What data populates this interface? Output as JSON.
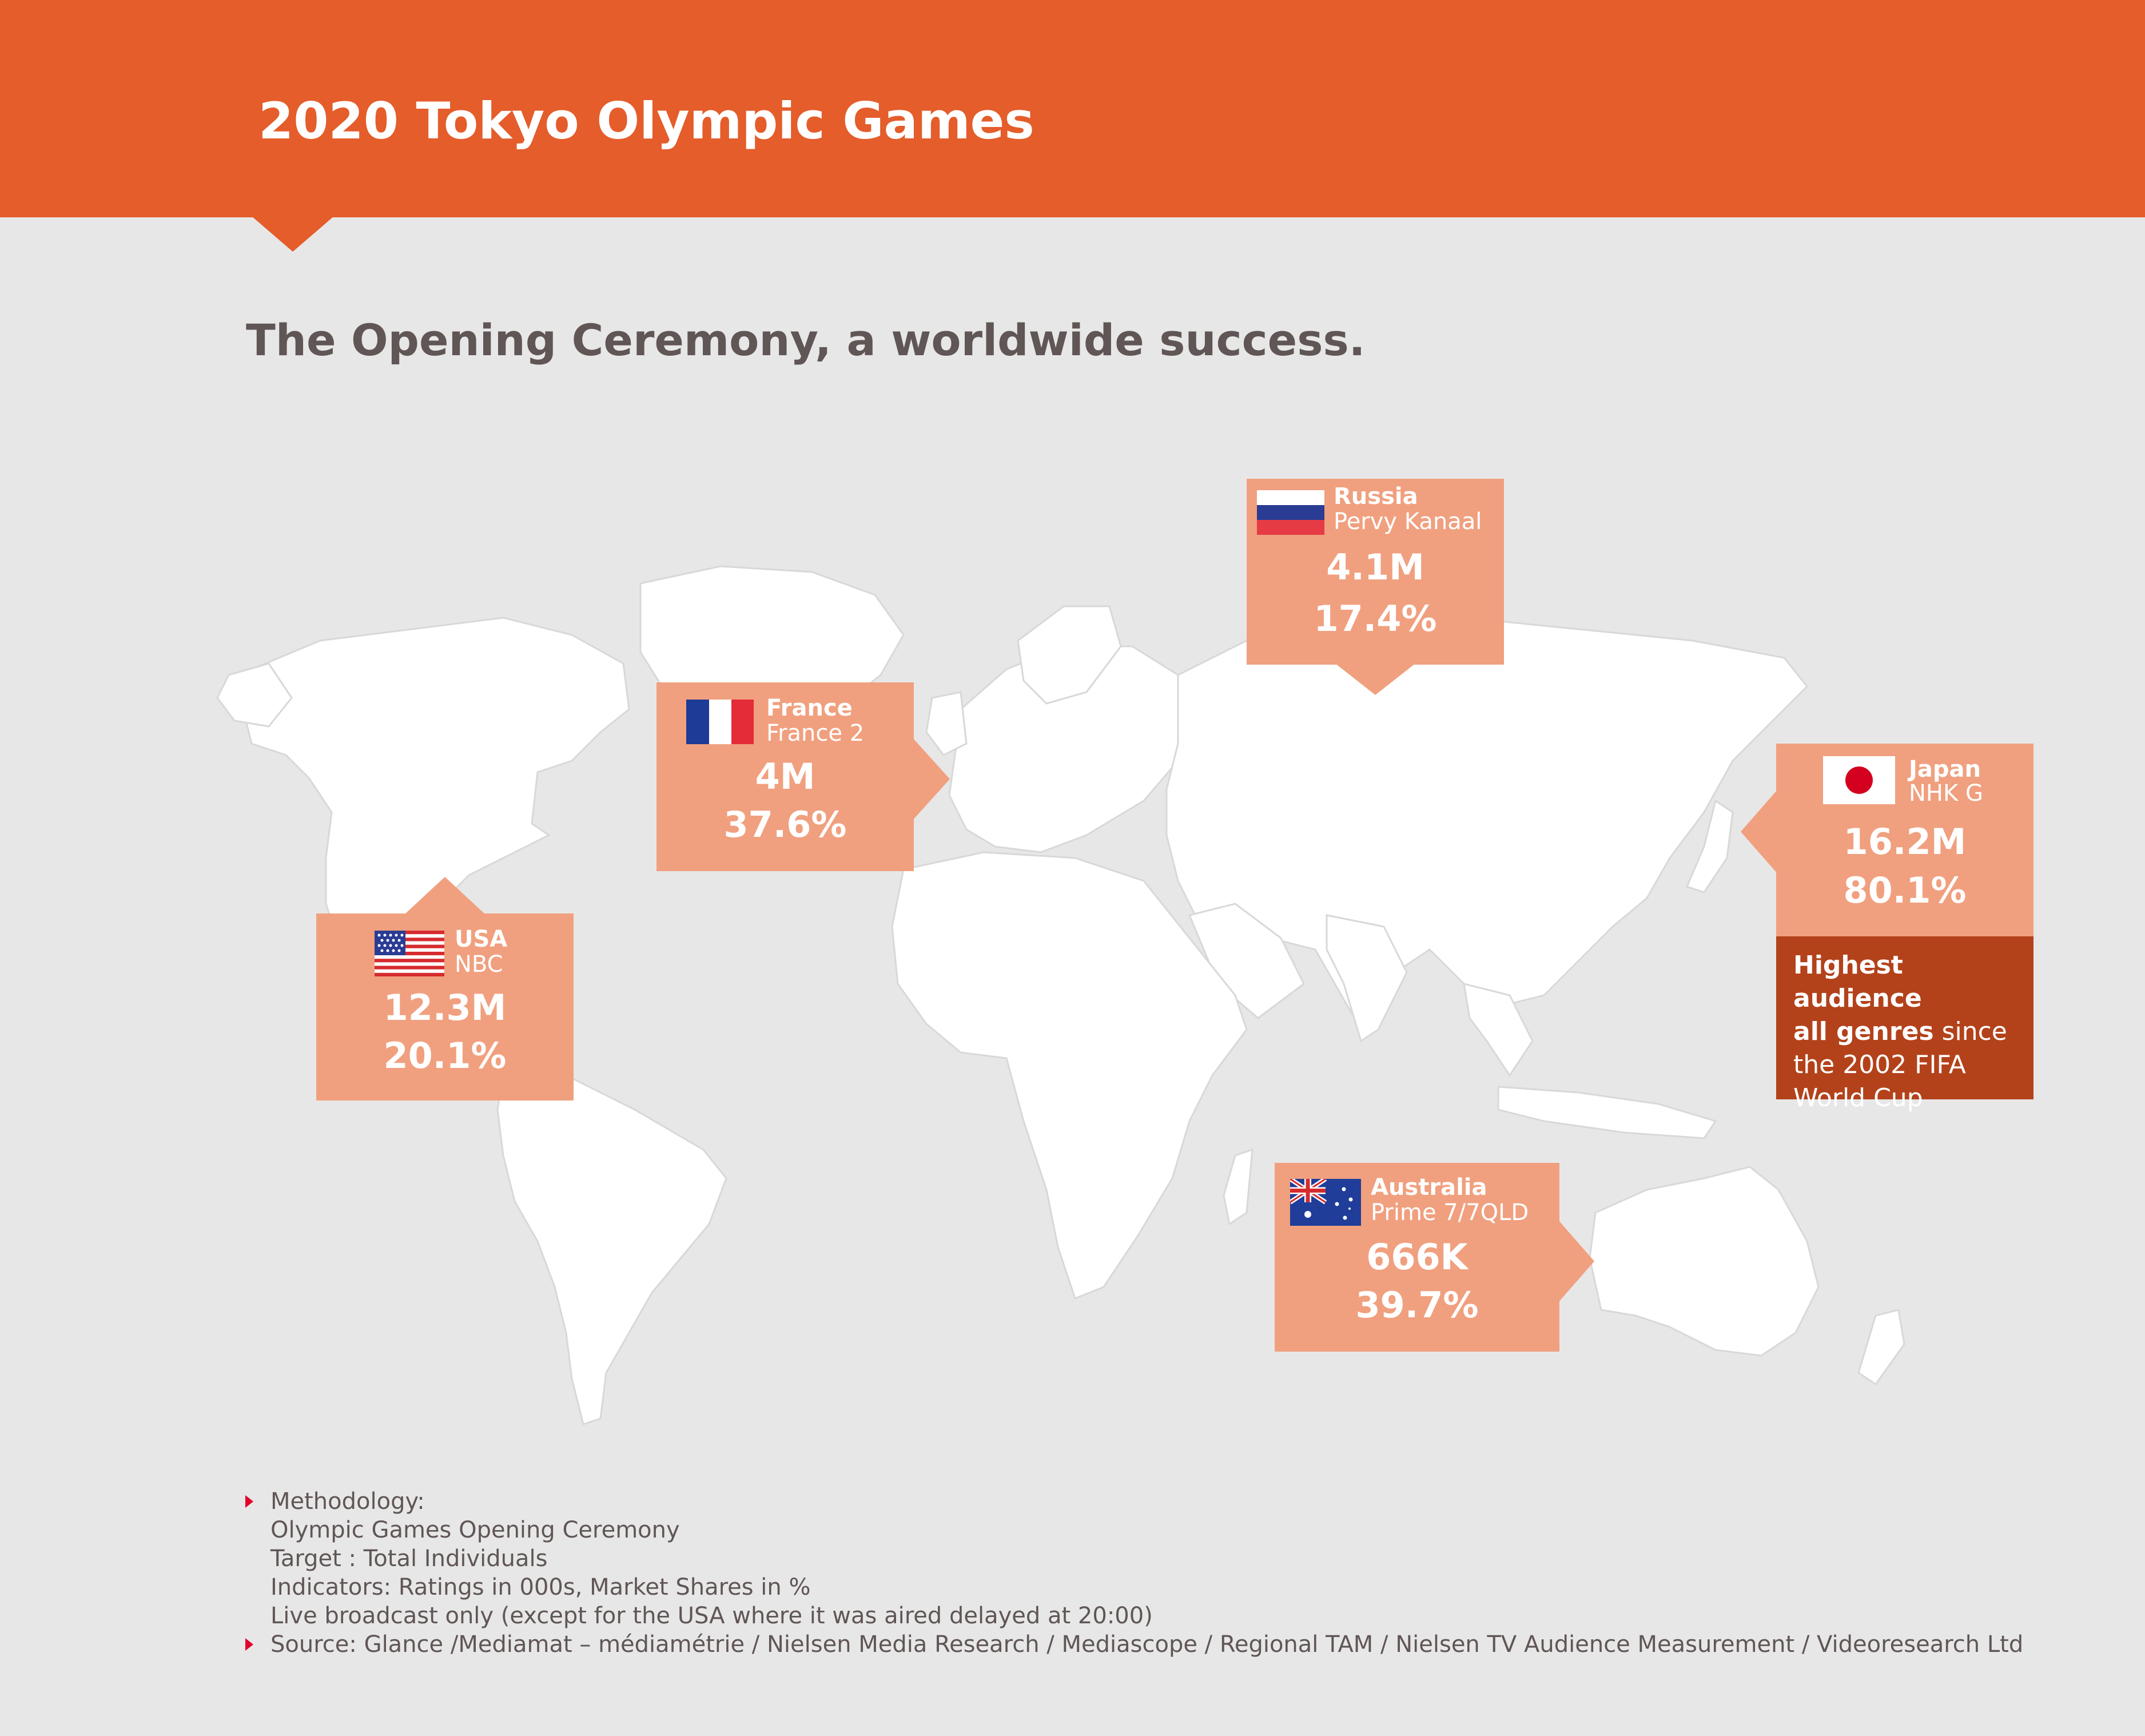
{
  "header": {
    "title": "2020 Tokyo Olympic Games"
  },
  "subtitle": "The Opening Ceremony, a worldwide success.",
  "colors": {
    "header": "#e45d2b",
    "background": "#e8e7e7",
    "card": "#f0a07f",
    "note": "#b3421b",
    "land": "#ffffff",
    "bullet": "#e0002a"
  },
  "cards": {
    "russia": {
      "country": "Russia",
      "channel": "Pervy Kanaal",
      "rating": "4.1M",
      "share": "17.4%",
      "flag": "russia-flag-icon"
    },
    "france": {
      "country": "France",
      "channel": "France 2",
      "rating": "4M",
      "share": "37.6%",
      "flag": "france-flag-icon"
    },
    "usa": {
      "country": "USA",
      "channel": "NBC",
      "rating": "12.3M",
      "share": "20.1%",
      "flag": "usa-flag-icon"
    },
    "japan": {
      "country": "Japan",
      "channel": "NHK G",
      "rating": "16.2M",
      "share": "80.1%",
      "flag": "japan-flag-icon"
    },
    "australia": {
      "country": "Australia",
      "channel": "Prime 7/7QLD",
      "rating": "666K",
      "share": "39.7%",
      "flag": "australia-flag-icon"
    }
  },
  "japan_note": {
    "bold_1": "Highest audience",
    "bold_2": "all genres",
    "rest_1": " since",
    "rest_2": "the 2002 FIFA",
    "rest_3": "World Cup"
  },
  "footer": {
    "methodology_label": "Methodology:",
    "lines": [
      "Olympic Games Opening Ceremony",
      "Target : Total Individuals",
      "Indicators: Ratings in 000s, Market Shares in %",
      "Live broadcast only (except for the USA where it was aired delayed at 20:00)"
    ],
    "source": "Source: Glance /Mediamat – médiamétrie / Nielsen Media Research / Mediascope / Regional TAM / Nielsen TV Audience Measurement / Videoresearch Ltd"
  }
}
